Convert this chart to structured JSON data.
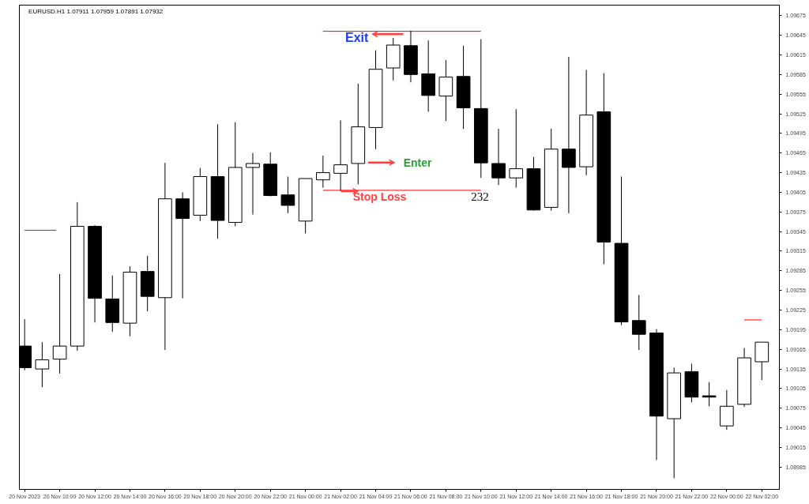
{
  "chart_data": {
    "type": "candlestick",
    "title": "EURUSD.H1 1.07911 1.07959 1.07891 1.07932",
    "x": [
      "2023-11-20T08:00",
      "2023-11-20T09:00",
      "2023-11-20T10:00",
      "2023-11-20T11:00",
      "2023-11-20T12:00",
      "2023-11-20T13:00",
      "2023-11-20T14:00",
      "2023-11-20T15:00",
      "2023-11-20T16:00",
      "2023-11-20T17:00",
      "2023-11-20T18:00",
      "2023-11-20T19:00",
      "2023-11-20T20:00",
      "2023-11-20T21:00",
      "2023-11-20T22:00",
      "2023-11-20T23:00",
      "2023-11-21T00:00",
      "2023-11-21T01:00",
      "2023-11-21T02:00",
      "2023-11-21T03:00",
      "2023-11-21T04:00",
      "2023-11-21T05:00",
      "2023-11-21T06:00",
      "2023-11-21T07:00",
      "2023-11-21T08:00",
      "2023-11-21T09:00",
      "2023-11-21T10:00",
      "2023-11-21T11:00",
      "2023-11-21T12:00",
      "2023-11-21T13:00",
      "2023-11-21T14:00",
      "2023-11-21T15:00",
      "2023-11-21T16:00",
      "2023-11-21T17:00",
      "2023-11-21T18:00",
      "2023-11-21T19:00",
      "2023-11-21T20:00",
      "2023-11-21T21:00",
      "2023-11-21T22:00",
      "2023-11-21T23:00",
      "2023-11-22T00:00",
      "2023-11-22T01:00",
      "2023-11-22T02:00"
    ],
    "ohlc": [
      [
        1.0917,
        1.09211,
        1.09133,
        1.09137
      ],
      [
        1.09135,
        1.09176,
        1.09107,
        1.09149
      ],
      [
        1.0915,
        1.0928,
        1.09128,
        1.0917
      ],
      [
        1.0917,
        1.0939,
        1.09163,
        1.09353
      ],
      [
        1.09353,
        1.09355,
        1.09206,
        1.09243
      ],
      [
        1.09242,
        1.09278,
        1.09192,
        1.09206
      ],
      [
        1.09205,
        1.09292,
        1.09185,
        1.09283
      ],
      [
        1.09284,
        1.09308,
        1.09223,
        1.09246
      ],
      [
        1.09244,
        1.0945,
        1.09164,
        1.09395
      ],
      [
        1.09395,
        1.09405,
        1.09243,
        1.09365
      ],
      [
        1.0937,
        1.09442,
        1.09361,
        1.09429
      ],
      [
        1.09429,
        1.09509,
        1.09334,
        1.09362
      ],
      [
        1.09359,
        1.09512,
        1.09353,
        1.09443
      ],
      [
        1.09443,
        1.09465,
        1.09371,
        1.09449
      ],
      [
        1.09448,
        1.09466,
        1.09399,
        1.094
      ],
      [
        1.09401,
        1.09429,
        1.09373,
        1.09385
      ],
      [
        1.09361,
        1.09426,
        1.09342,
        1.09426
      ],
      [
        1.09424,
        1.09461,
        1.09412,
        1.09435
      ],
      [
        1.09434,
        1.09515,
        1.09407,
        1.09447
      ],
      [
        1.09449,
        1.09571,
        1.09417,
        1.09505
      ],
      [
        1.09504,
        1.09622,
        1.09471,
        1.09593
      ],
      [
        1.09595,
        1.09641,
        1.09576,
        1.0963
      ],
      [
        1.09629,
        1.09652,
        1.09573,
        1.09585
      ],
      [
        1.09586,
        1.09637,
        1.09528,
        1.09553
      ],
      [
        1.09552,
        1.09607,
        1.09514,
        1.09581
      ],
      [
        1.09582,
        1.09629,
        1.09502,
        1.09534
      ],
      [
        1.09533,
        1.09639,
        1.09427,
        1.0945
      ],
      [
        1.09449,
        1.09502,
        1.09416,
        1.09427
      ],
      [
        1.09427,
        1.09532,
        1.09412,
        1.09441
      ],
      [
        1.09441,
        1.09459,
        1.09377,
        1.09378
      ],
      [
        1.09382,
        1.09502,
        1.09377,
        1.09471
      ],
      [
        1.09471,
        1.09612,
        1.09373,
        1.09443
      ],
      [
        1.09444,
        1.09592,
        1.09431,
        1.09523
      ],
      [
        1.09528,
        1.09587,
        1.09295,
        1.09329
      ],
      [
        1.09327,
        1.09429,
        1.09202,
        1.09207
      ],
      [
        1.09209,
        1.09248,
        1.09164,
        1.09188
      ],
      [
        1.0919,
        1.09196,
        1.08996,
        1.09063
      ],
      [
        1.09059,
        1.09137,
        1.08968,
        1.09129
      ],
      [
        1.09131,
        1.09143,
        1.09084,
        1.09092
      ],
      [
        1.09094,
        1.09115,
        1.09078,
        1.09092
      ],
      [
        1.09048,
        1.09103,
        1.09042,
        1.09078
      ],
      [
        1.09081,
        1.09167,
        1.09077,
        1.09152
      ],
      [
        1.09146,
        1.09176,
        1.09118,
        1.09176
      ]
    ],
    "colors": [
      "#000000",
      "#ffffff",
      "#ffffff",
      "#ffffff",
      "#000000",
      "#000000",
      "#ffffff",
      "#000000",
      "#ffffff",
      "#000000",
      "#ffffff",
      "#000000",
      "#ffffff",
      "#ffffff",
      "#000000",
      "#000000",
      "#ffffff",
      "#ffffff",
      "#ffffff",
      "#ffffff",
      "#ffffff",
      "#ffffff",
      "#000000",
      "#000000",
      "#ffffff",
      "#000000",
      "#000000",
      "#000000",
      "#ffffff",
      "#000000",
      "#ffffff",
      "#000000",
      "#ffffff",
      "#000000",
      "#000000",
      "#000000",
      "#000000",
      "#ffffff",
      "#000000",
      "#000000",
      "#ffffff",
      "#ffffff",
      "#ffffff"
    ],
    "series": [
      {
        "type": "line",
        "color": "#ff0000",
        "x": [
          "2023-11-21T01:00",
          "2023-11-21T10:00"
        ],
        "values": [
          1.09651,
          1.09651
        ]
      },
      {
        "type": "line",
        "color": "#ff0000",
        "x": [
          "2023-11-21T01:00",
          "2023-11-21T10:00"
        ],
        "values": [
          1.09408,
          1.09408
        ]
      },
      {
        "type": "line",
        "color": "#ff0000",
        "x": [
          "2023-11-20T08:00",
          "2023-11-20T09:48"
        ],
        "values": [
          1.09347,
          1.09347
        ]
      },
      {
        "type": "line",
        "color": "#ff0000",
        "x": [
          "2023-11-22T01:00",
          "2023-11-22T02:00"
        ],
        "values": [
          1.0921,
          1.0921
        ]
      }
    ],
    "annotations": [
      "Exit",
      "Enter",
      "Stop Loss",
      "232"
    ],
    "xlim": [
      "2023-11-20T07:42",
      "2023-11-22T03:00"
    ],
    "xticks": [
      {
        "value": "2023-11-20T08:00",
        "label": "20 Nov 2023"
      },
      {
        "value": "2023-11-20T10:00",
        "label": "20 Nov 10:00"
      },
      {
        "value": "2023-11-20T12:00",
        "label": "20 Nov 12:00"
      },
      {
        "value": "2023-11-20T14:00",
        "label": "20 Nov 14:00"
      },
      {
        "value": "2023-11-20T16:00",
        "label": "20 Nov 16:00"
      },
      {
        "value": "2023-11-20T18:00",
        "label": "20 Nov 18:00"
      },
      {
        "value": "2023-11-20T20:00",
        "label": "20 Nov 20:00"
      },
      {
        "value": "2023-11-20T22:00",
        "label": "20 Nov 22:00"
      },
      {
        "value": "2023-11-21T00:00",
        "label": "21 Nov 00:00"
      },
      {
        "value": "2023-11-21T02:00",
        "label": "21 Nov 02:00"
      },
      {
        "value": "2023-11-21T04:00",
        "label": "21 Nov 04:00"
      },
      {
        "value": "2023-11-21T06:00",
        "label": "21 Nov 06:00"
      },
      {
        "value": "2023-11-21T08:00",
        "label": "21 Nov 08:00"
      },
      {
        "value": "2023-11-21T10:00",
        "label": "21 Nov 10:00"
      },
      {
        "value": "2023-11-21T12:00",
        "label": "21 Nov 12:00"
      },
      {
        "value": "2023-11-21T14:00",
        "label": "21 Nov 14:00"
      },
      {
        "value": "2023-11-21T16:00",
        "label": "21 Nov 16:00"
      },
      {
        "value": "2023-11-21T18:00",
        "label": "21 Nov 18:00"
      },
      {
        "value": "2023-11-21T20:00",
        "label": "21 Nov 20:00"
      },
      {
        "value": "2023-11-21T22:00",
        "label": "21 Nov 22:00"
      },
      {
        "value": "2023-11-22T00:00",
        "label": "22 Nov 00:00"
      },
      {
        "value": "2023-11-22T02:00",
        "label": "22 Nov 02:00"
      }
    ],
    "ylim": [
      1.08951,
      1.09691
    ],
    "yticks": [
      1.08985,
      1.09015,
      1.09045,
      1.09075,
      1.09105,
      1.09135,
      1.09165,
      1.09195,
      1.09225,
      1.09255,
      1.09285,
      1.09315,
      1.09345,
      1.09375,
      1.09405,
      1.09435,
      1.09465,
      1.09495,
      1.09525,
      1.09555,
      1.09585,
      1.09615,
      1.09645,
      1.09675
    ],
    "grid": false
  }
}
